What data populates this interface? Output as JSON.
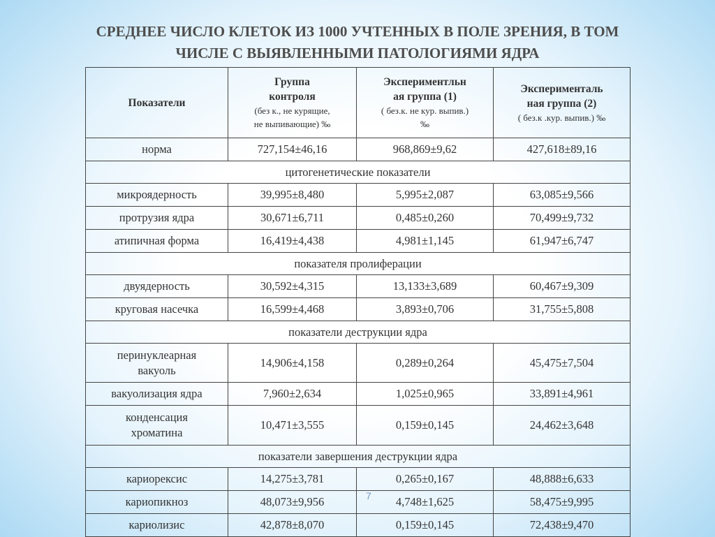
{
  "title": [
    "СРЕДНЕЕ ЧИСЛО КЛЕТОК ИЗ 1000 УЧТЕННЫХ В ПОЛЕ ЗРЕНИЯ, В ТОМ",
    "ЧИСЛЕ С ВЫЯВЛЕННЫМИ ПАТОЛОГИЯМИ ЯДРА"
  ],
  "table": {
    "header": [
      {
        "title": "Показатели"
      },
      {
        "title": "Группа\nконтроля",
        "note": "(без к., не курящие,\nне выпивающие) ‰"
      },
      {
        "title": "Экспериментльн\nая группа (1)",
        "note": "( без.к. не кур. выпив.)\n‰"
      },
      {
        "title": "Эксперименталь\nная группа (2)",
        "note": "( без.к .кур. выпив.) ‰"
      }
    ],
    "rows": [
      {
        "label": "норма",
        "values": [
          "727,154±46,16",
          "968,869±9,62",
          "427,618±89,16"
        ]
      },
      {
        "section": "цитогенетические показатели"
      },
      {
        "label": "микроядерность",
        "values": [
          "39,995±8,480",
          "5,995±2,087",
          "63,085±9,566"
        ]
      },
      {
        "label": "протрузия ядра",
        "values": [
          "30,671±6,711",
          "0,485±0,260",
          "70,499±9,732"
        ]
      },
      {
        "label": "атипичная форма",
        "values": [
          "16,419±4,438",
          "4,981±1,145",
          "61,947±6,747"
        ]
      },
      {
        "section": "показателя пролиферации"
      },
      {
        "label": "двуядерность",
        "values": [
          "30,592±4,315",
          "13,133±3,689",
          "60,467±9,309"
        ]
      },
      {
        "label": "круговая насечка",
        "values": [
          "16,599±4,468",
          "3,893±0,706",
          "31,755±5,808"
        ]
      },
      {
        "section": "показатели деструкции ядра"
      },
      {
        "label": "перинуклеарная\nвакуоль",
        "values": [
          "14,906±4,158",
          "0,289±0,264",
          "45,475±7,504"
        ]
      },
      {
        "label": "вакуолизация ядра",
        "values": [
          "7,960±2,634",
          "1,025±0,965",
          "33,891±4,961"
        ]
      },
      {
        "label": "конденсация\nхроматина",
        "values": [
          "10,471±3,555",
          "0,159±0,145",
          "24,462±3,648"
        ]
      },
      {
        "section": "показатели завершения деструкции ядра"
      },
      {
        "label": "кариорексис",
        "values": [
          "14,275±3,781",
          "0,265±0,167",
          "48,888±6,633"
        ]
      },
      {
        "label": "кариопикноз",
        "values": [
          "48,073±9,956",
          "4,748±1,625",
          "58,475±9,995"
        ]
      },
      {
        "label": "кариолизис",
        "values": [
          "42,878±8,070",
          "0,159±0,145",
          "72,438±9,470"
        ]
      }
    ]
  },
  "page_number": "7"
}
